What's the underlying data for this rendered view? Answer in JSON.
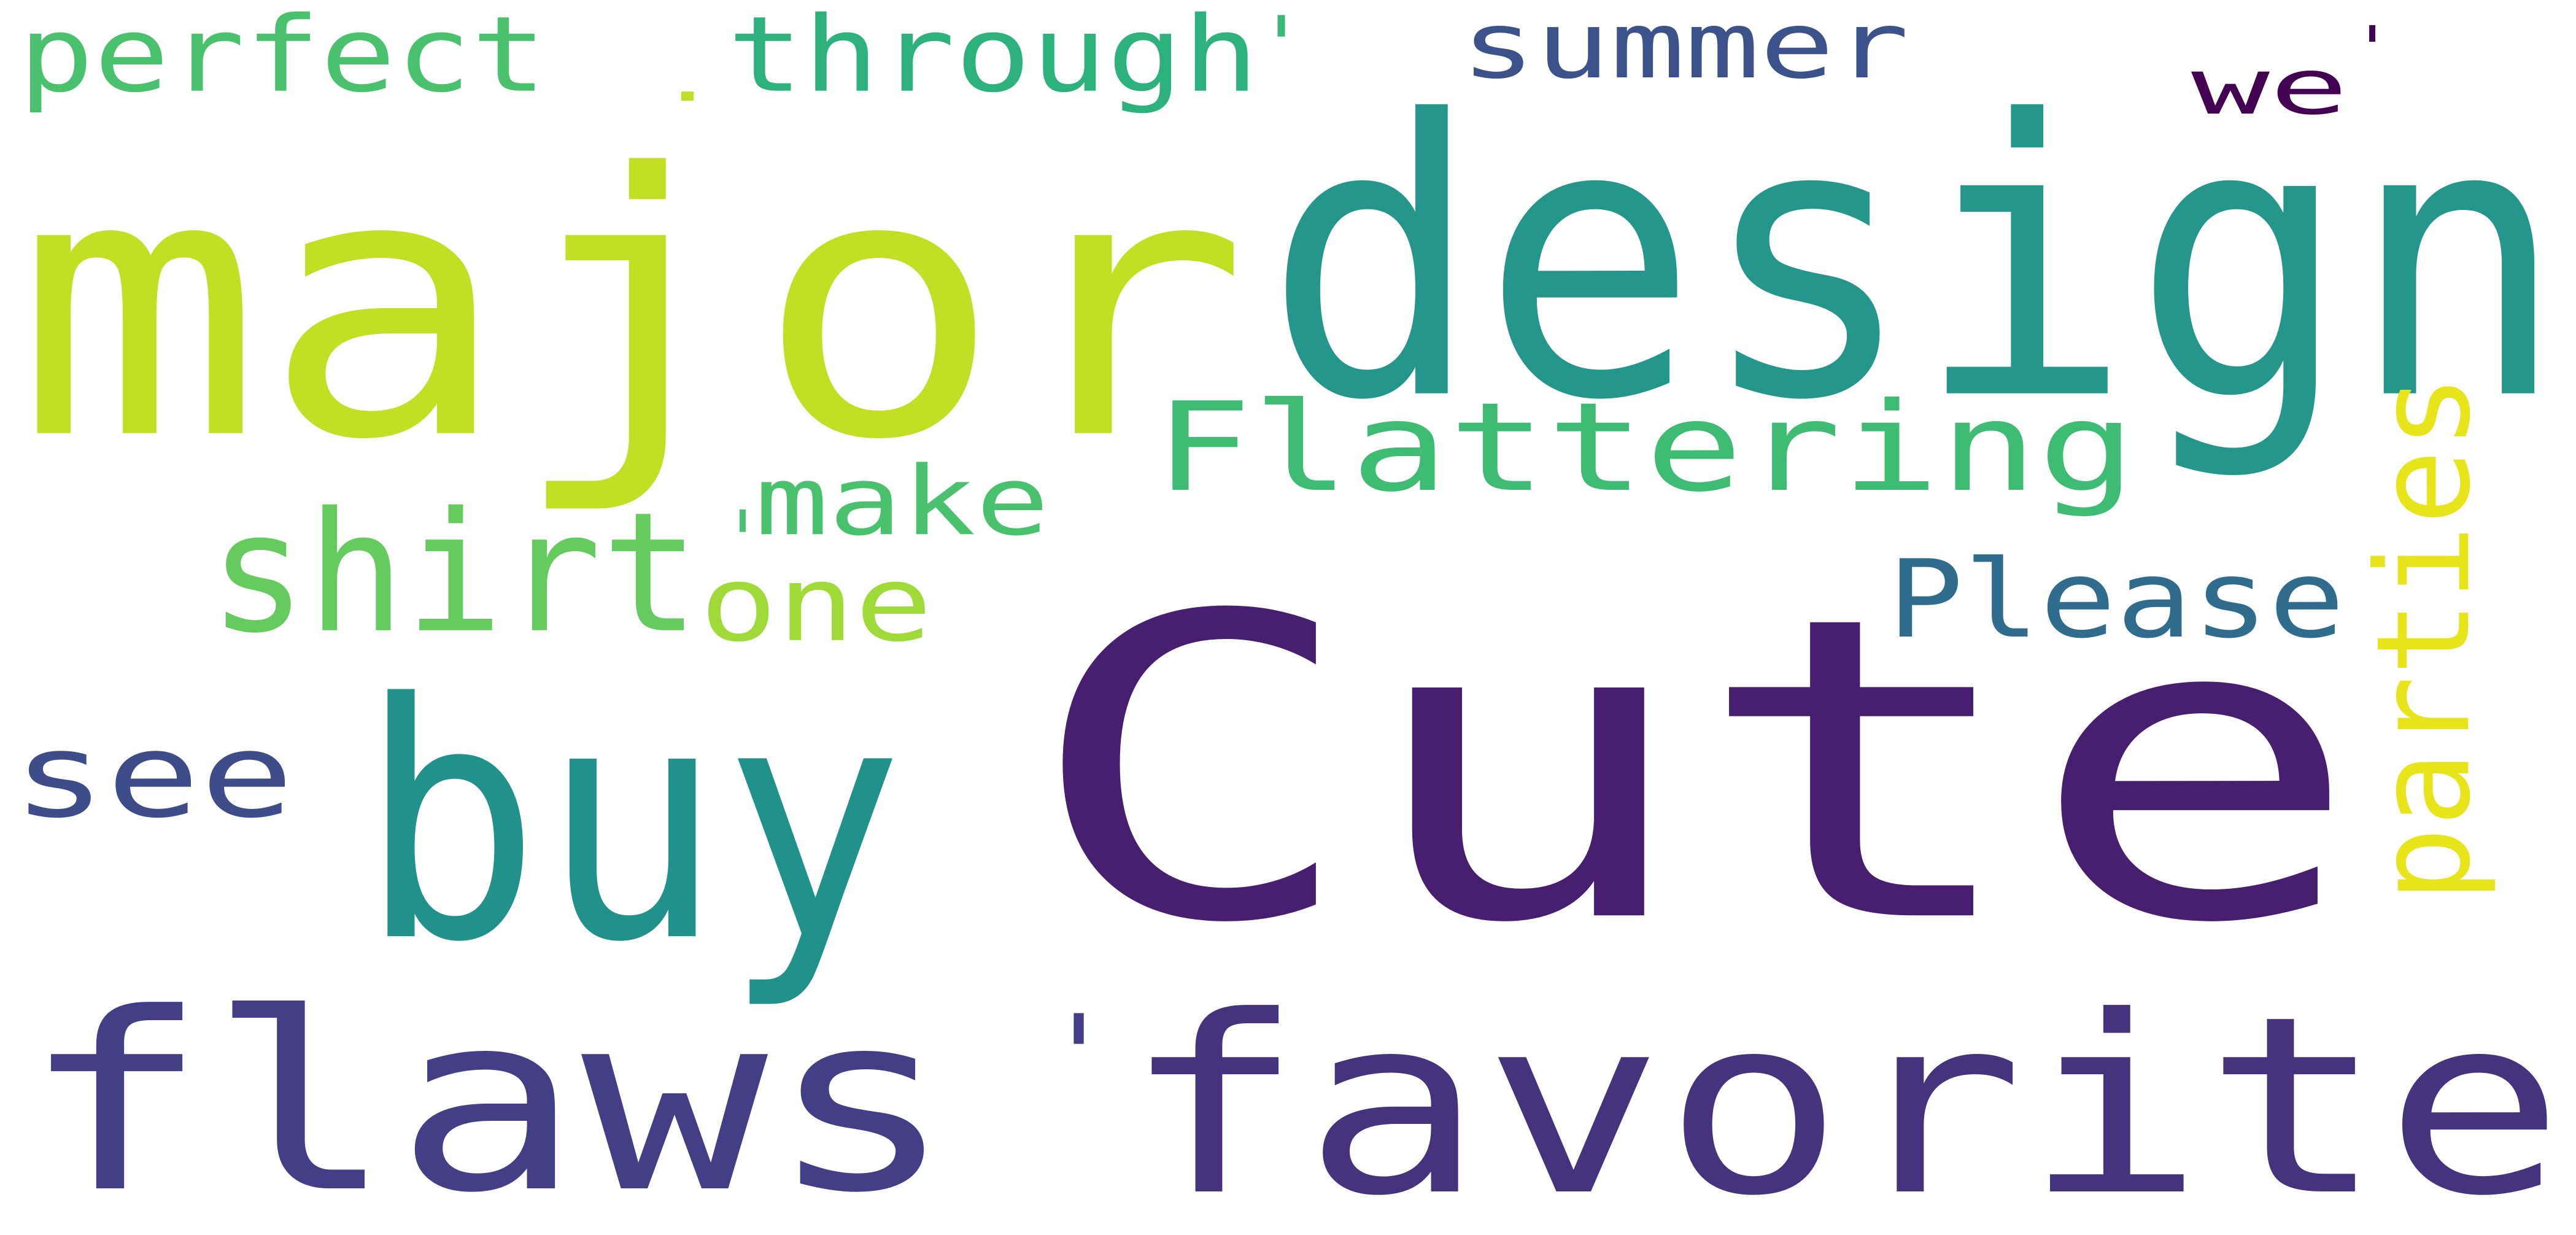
{
  "wordcloud": {
    "words": [
      {
        "text": "perfect",
        "color": "#4ac16d"
      },
      {
        "text": "through",
        "color": "#2db27d"
      },
      {
        "text": "'",
        "color": "#3aba76"
      },
      {
        "text": ".",
        "color": "#bddf26"
      },
      {
        "text": "summer",
        "color": "#3b528b"
      },
      {
        "text": "we",
        "color": "#440154"
      },
      {
        "text": "'",
        "color": "#440154"
      },
      {
        "text": "major",
        "color": "#c2df23"
      },
      {
        "text": "design",
        "color": "#25968b"
      },
      {
        "text": "Flattering",
        "color": "#3fbc73"
      },
      {
        "text": "make",
        "color": "#4ac16d"
      },
      {
        "text": "'",
        "color": "#4ac16d"
      },
      {
        "text": "shirt",
        "color": "#65cb5e"
      },
      {
        "text": "one",
        "color": "#a0da39"
      },
      {
        "text": "Please",
        "color": "#2f6c8e"
      },
      {
        "text": "parties",
        "color": "#e7e419"
      },
      {
        "text": "see",
        "color": "#3e4c8a"
      },
      {
        "text": "buy",
        "color": "#21918c"
      },
      {
        "text": "Cute",
        "color": "#481f70"
      },
      {
        "text": "flaws",
        "color": "#433e85"
      },
      {
        "text": "'",
        "color": "#433e85"
      },
      {
        "text": "favorite",
        "color": "#46337e"
      }
    ]
  }
}
